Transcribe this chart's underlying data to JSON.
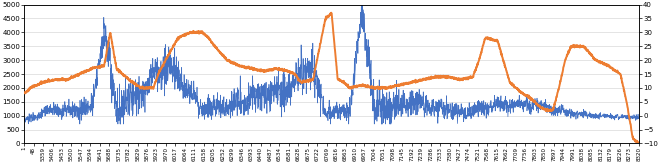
{
  "left_ylim": [
    0,
    5000
  ],
  "right_ylim": [
    -10,
    40
  ],
  "left_yticks": [
    0,
    500,
    1000,
    1500,
    2000,
    2500,
    3000,
    3500,
    4000,
    4500,
    5000
  ],
  "right_yticks": [
    -10,
    -5,
    0,
    5,
    10,
    15,
    20,
    25,
    30,
    35,
    40
  ],
  "blue_color": "#4472C4",
  "orange_color": "#ED7D31",
  "blue_linewidth": 0.5,
  "orange_linewidth": 1.4,
  "background_color": "#ffffff",
  "grid_color": "#d9d9d9",
  "figsize": [
    6.6,
    1.63
  ],
  "dpi": 100,
  "xtick_labels": [
    "1",
    "48",
    "5359",
    "5406",
    "5453",
    "5500",
    "5547",
    "5594",
    "5641",
    "5688",
    "5735",
    "5782",
    "5829",
    "5876",
    "5923",
    "5970",
    "6017",
    "6064",
    "6111",
    "6158",
    "6205",
    "6252",
    "6299",
    "6346",
    "6393",
    "6440",
    "6487",
    "6534",
    "6581",
    "6628",
    "6675",
    "6722",
    "6769",
    "6816",
    "6863",
    "6910",
    "6957",
    "7004",
    "7051",
    "7098",
    "7145",
    "7192",
    "7239",
    "7286",
    "7333",
    "7380",
    "7427",
    "7474",
    "7521",
    "7568",
    "7615",
    "7662",
    "7709",
    "7756",
    "7803",
    "7850",
    "7897",
    "7944",
    "7991",
    "8038",
    "8085",
    "8132",
    "8179",
    "8226",
    "8273",
    "8320"
  ]
}
